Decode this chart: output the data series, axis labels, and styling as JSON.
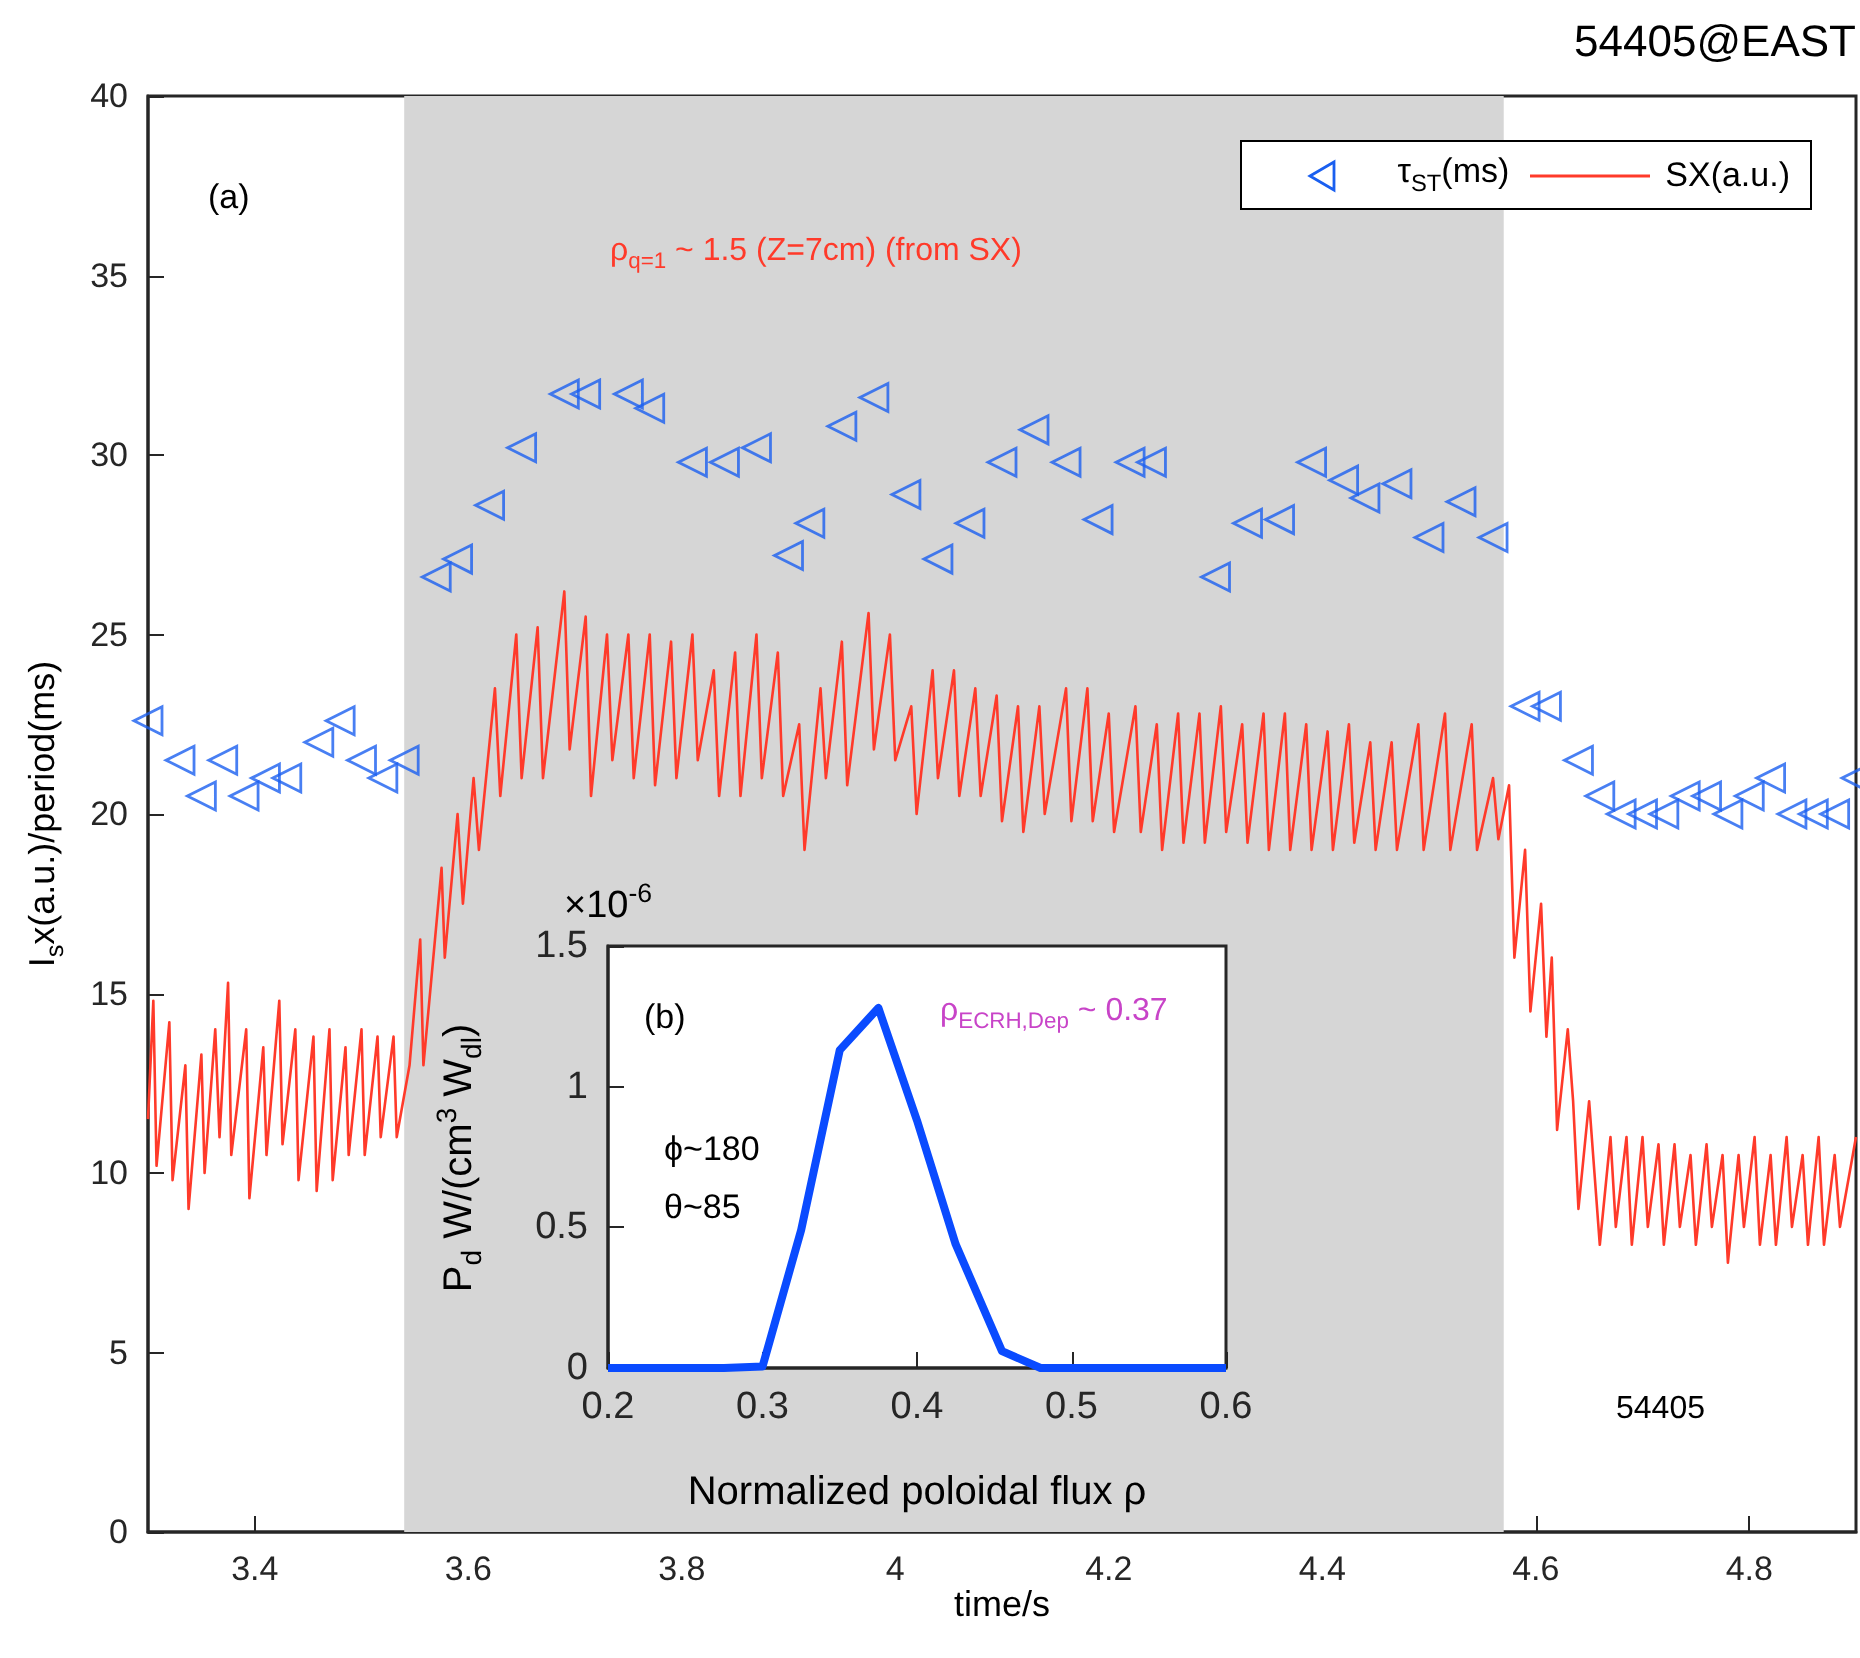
{
  "chart_data": [
    {
      "type": "scatter",
      "title": "54405@EAST",
      "xlabel": "time/s",
      "ylabel": "I$_{s}$x(a.u.)/period(ms)",
      "xlim": [
        3.3,
        4.9
      ],
      "xticks": [
        3.4,
        3.6,
        3.8,
        4,
        4.2,
        4.4,
        4.6,
        4.8
      ],
      "ylim": [
        0,
        40
      ],
      "yticks": [
        0,
        5,
        10,
        15,
        20,
        25,
        30,
        35,
        40
      ],
      "grid": false,
      "legend": "top right",
      "bands": [
        {
          "axis": "x",
          "from": 3.54,
          "to": 4.57,
          "color": "#d6d6d6"
        }
      ],
      "annotations": [
        "(a)",
        "ρ$_{q=1}$ ~ 1.5 (Z=7cm) (from SX)",
        "54405"
      ],
      "series": [
        {
          "name": "τ$_{ST}$(ms)",
          "marker": "triangle",
          "color": "#1a5ff0",
          "x": [
            3.3,
            3.33,
            3.35,
            3.37,
            3.39,
            3.41,
            3.43,
            3.46,
            3.48,
            3.5,
            3.52,
            3.54,
            3.57,
            3.59,
            3.62,
            3.65,
            3.69,
            3.71,
            3.75,
            3.77,
            3.81,
            3.84,
            3.87,
            3.9,
            3.92,
            3.95,
            3.98,
            4.01,
            4.04,
            4.07,
            4.1,
            4.13,
            4.16,
            4.19,
            4.22,
            4.24,
            4.3,
            4.33,
            4.36,
            4.39,
            4.42,
            4.44,
            4.47,
            4.5,
            4.53,
            4.56,
            4.59,
            4.61,
            4.64,
            4.66,
            4.68,
            4.7,
            4.72,
            4.74,
            4.76,
            4.78,
            4.8,
            4.82,
            4.84,
            4.86,
            4.88,
            4.9
          ],
          "values": [
            22.6,
            21.5,
            20.5,
            21.5,
            20.5,
            21.0,
            21.0,
            22.0,
            22.6,
            21.5,
            21.0,
            21.5,
            26.6,
            27.1,
            28.6,
            30.2,
            31.7,
            31.7,
            31.7,
            31.3,
            29.8,
            29.8,
            30.2,
            27.2,
            28.1,
            30.8,
            31.6,
            28.9,
            27.1,
            28.1,
            29.8,
            30.7,
            29.8,
            28.2,
            29.8,
            29.8,
            26.6,
            28.1,
            28.2,
            29.8,
            29.3,
            28.8,
            29.2,
            27.7,
            28.7,
            27.7,
            23.0,
            23.0,
            21.5,
            20.5,
            20.0,
            20.0,
            20.0,
            20.5,
            20.5,
            20.0,
            20.5,
            21.0,
            20.0,
            20.0,
            20.0,
            21.0
          ]
        },
        {
          "name": "SX(a.u.)",
          "type": "line",
          "marker": "none",
          "color": "#ff3a2a",
          "x": [
            3.3,
            3.305,
            3.308,
            3.32,
            3.323,
            3.335,
            3.338,
            3.35,
            3.353,
            3.363,
            3.367,
            3.375,
            3.378,
            3.392,
            3.395,
            3.408,
            3.411,
            3.423,
            3.426,
            3.438,
            3.441,
            3.455,
            3.458,
            3.47,
            3.473,
            3.485,
            3.488,
            3.5,
            3.503,
            3.515,
            3.518,
            3.53,
            3.533,
            3.545,
            3.555,
            3.558,
            3.575,
            3.578,
            3.59,
            3.595,
            3.605,
            3.61,
            3.625,
            3.63,
            3.645,
            3.65,
            3.665,
            3.67,
            3.69,
            3.695,
            3.71,
            3.715,
            3.73,
            3.735,
            3.75,
            3.755,
            3.77,
            3.775,
            3.79,
            3.795,
            3.81,
            3.815,
            3.83,
            3.835,
            3.85,
            3.855,
            3.87,
            3.875,
            3.89,
            3.895,
            3.91,
            3.915,
            3.93,
            3.935,
            3.95,
            3.955,
            3.975,
            3.98,
            3.995,
            4.0,
            4.015,
            4.02,
            4.035,
            4.04,
            4.055,
            4.06,
            4.075,
            4.08,
            4.095,
            4.1,
            4.115,
            4.12,
            4.135,
            4.14,
            4.16,
            4.165,
            4.18,
            4.185,
            4.2,
            4.205,
            4.225,
            4.23,
            4.245,
            4.25,
            4.265,
            4.27,
            4.285,
            4.29,
            4.305,
            4.31,
            4.325,
            4.33,
            4.345,
            4.35,
            4.365,
            4.37,
            4.385,
            4.39,
            4.405,
            4.41,
            4.425,
            4.43,
            4.445,
            4.45,
            4.465,
            4.47,
            4.49,
            4.495,
            4.515,
            4.52,
            4.54,
            4.545,
            4.56,
            4.565,
            4.575,
            4.58,
            4.59,
            4.595,
            4.605,
            4.61,
            4.615,
            4.62,
            4.63,
            4.635,
            4.64,
            4.65,
            4.655,
            4.66,
            4.67,
            4.675,
            4.685,
            4.69,
            4.7,
            4.705,
            4.715,
            4.72,
            4.73,
            4.735,
            4.745,
            4.75,
            4.76,
            4.765,
            4.775,
            4.78,
            4.79,
            4.795,
            4.805,
            4.81,
            4.82,
            4.825,
            4.835,
            4.84,
            4.85,
            4.855,
            4.865,
            4.87,
            4.88,
            4.885,
            4.9
          ],
          "values": [
            11.5,
            14.8,
            10.2,
            14.2,
            9.8,
            13.0,
            9.0,
            13.3,
            10.0,
            14.0,
            11.0,
            15.3,
            10.5,
            14.0,
            9.3,
            13.5,
            10.5,
            14.8,
            10.8,
            14.0,
            9.8,
            13.8,
            9.5,
            14.0,
            9.8,
            13.5,
            10.5,
            14.0,
            10.5,
            13.8,
            11.0,
            13.8,
            11.0,
            13.0,
            16.5,
            13.0,
            18.5,
            16.0,
            20.0,
            17.5,
            21.0,
            19.0,
            23.5,
            20.5,
            25.0,
            21.0,
            25.2,
            21.0,
            26.2,
            21.8,
            25.5,
            20.5,
            25.0,
            21.5,
            25.0,
            21.0,
            25.0,
            20.8,
            24.8,
            21.0,
            25.0,
            21.5,
            24.0,
            20.5,
            24.5,
            20.5,
            25.0,
            21.0,
            24.5,
            20.5,
            22.5,
            19.0,
            23.5,
            21.0,
            24.8,
            20.8,
            25.6,
            21.8,
            25.0,
            21.5,
            23.0,
            20.0,
            24.0,
            21.0,
            24.0,
            20.5,
            23.5,
            20.5,
            23.3,
            19.8,
            23.0,
            19.5,
            23.0,
            20.0,
            23.5,
            19.8,
            23.5,
            19.8,
            22.8,
            19.5,
            23.0,
            19.5,
            22.5,
            19.0,
            22.8,
            19.2,
            22.8,
            19.2,
            23.0,
            19.5,
            22.5,
            19.2,
            22.8,
            19.0,
            22.8,
            19.0,
            22.5,
            19.0,
            22.3,
            19.0,
            22.5,
            19.2,
            22.0,
            19.0,
            22.0,
            19.0,
            22.5,
            19.0,
            22.8,
            19.0,
            22.5,
            19.0,
            21.0,
            19.3,
            20.8,
            16.0,
            19.0,
            14.5,
            17.5,
            13.8,
            16.0,
            11.2,
            14.0,
            12.0,
            9.0,
            12.0,
            10.0,
            8.0,
            11.0,
            8.5,
            11.0,
            8.0,
            11.0,
            8.5,
            10.8,
            8.0,
            10.8,
            8.5,
            10.5,
            8.0,
            10.8,
            8.5,
            10.5,
            7.5,
            10.5,
            8.5,
            11.0,
            8.0,
            10.5,
            8.0,
            11.0,
            8.5,
            10.5,
            8.0,
            11.0,
            8.0,
            10.5,
            8.5,
            11.0
          ]
        }
      ]
    },
    {
      "type": "line",
      "xlabel": "Normalized poloidal flux ρ",
      "ylabel": "P$_{d}$ W/(cm$^{3}$ W$_{dl}$)",
      "xlim": [
        0.2,
        0.6
      ],
      "xticks": [
        0.2,
        0.3,
        0.4,
        0.5,
        0.6
      ],
      "ylim": [
        0,
        1.5
      ],
      "yticks": [
        0,
        0.5,
        1,
        1.5
      ],
      "grid": false,
      "marker": "none",
      "annotations": [
        "×10$^{-6}$",
        "(b)",
        "ϕ~180",
        "θ~85",
        "ρ$_{ECRH,Dep}$ ~ 0.37"
      ],
      "series": [
        {
          "color": "#0a4bff",
          "x": [
            0.2,
            0.275,
            0.3,
            0.325,
            0.35,
            0.375,
            0.4,
            0.425,
            0.455,
            0.48,
            0.6
          ],
          "values": [
            0,
            0,
            0.005,
            0.49,
            1.13,
            1.28,
            0.88,
            0.44,
            0.06,
            0,
            0
          ]
        }
      ]
    }
  ]
}
